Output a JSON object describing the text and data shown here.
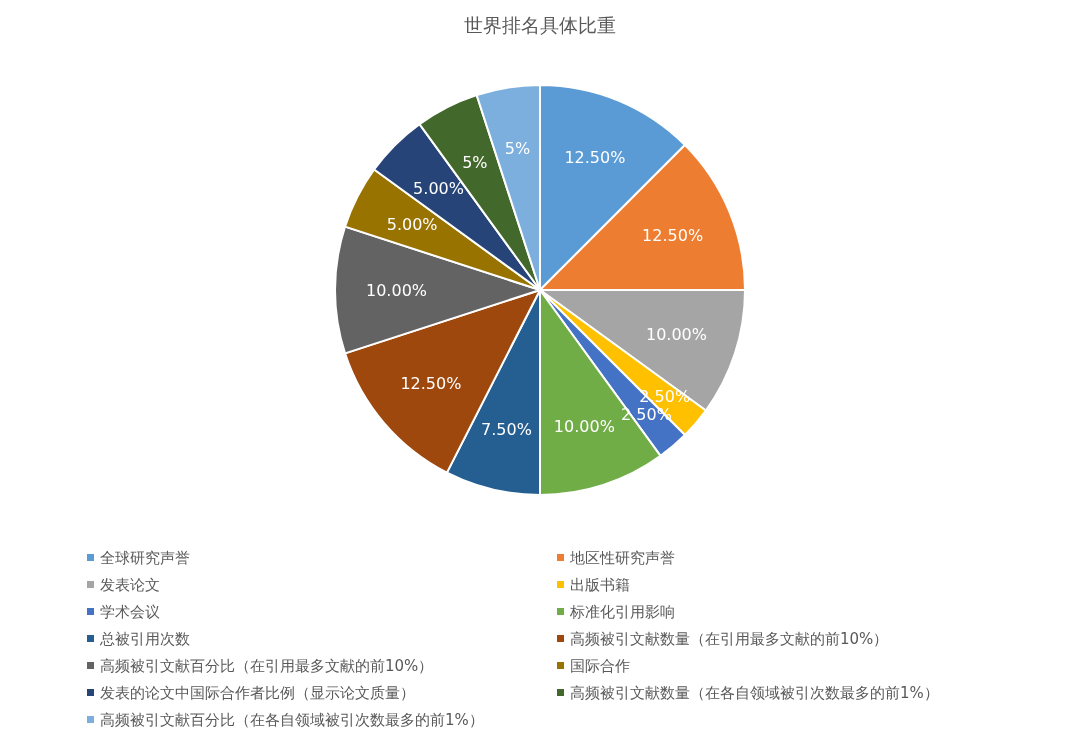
{
  "chart_data": {
    "type": "pie",
    "title": "世界排名具体比重",
    "categories": [
      "全球研究声誉",
      "地区性研究声誉",
      "发表论文",
      "出版书籍",
      "学术会议",
      "标准化引用影响",
      "总被引用次数",
      "高频被引文献数量（在引用最多文献的前10%）",
      "高频被引文献百分比（在引用最多文献的前10%）",
      "国际合作",
      "发表的论文中国际合作者比例（显示论文质量）",
      "高频被引文献数量（在各自领域被引次数最多的前1%）",
      "高频被引文献百分比（在各自领域被引次数最多的前1%）"
    ],
    "values": [
      12.5,
      12.5,
      10,
      2.5,
      2.5,
      10,
      7.5,
      12.5,
      10,
      5,
      5,
      5,
      5
    ],
    "value_labels": [
      "12.50%",
      "12.50%",
      "10.00%",
      "2.50%",
      "2.50%",
      "10.00%",
      "7.50%",
      "12.50%",
      "10.00%",
      "5.00%",
      "5.00%",
      "5%",
      "5%"
    ],
    "colors": [
      "#5b9bd5",
      "#ed7d31",
      "#a5a5a5",
      "#ffc000",
      "#4472c4",
      "#70ad47",
      "#255e91",
      "#9e480e",
      "#636363",
      "#997300",
      "#264478",
      "#43682b",
      "#7cafdd"
    ],
    "legend": "bottom"
  }
}
